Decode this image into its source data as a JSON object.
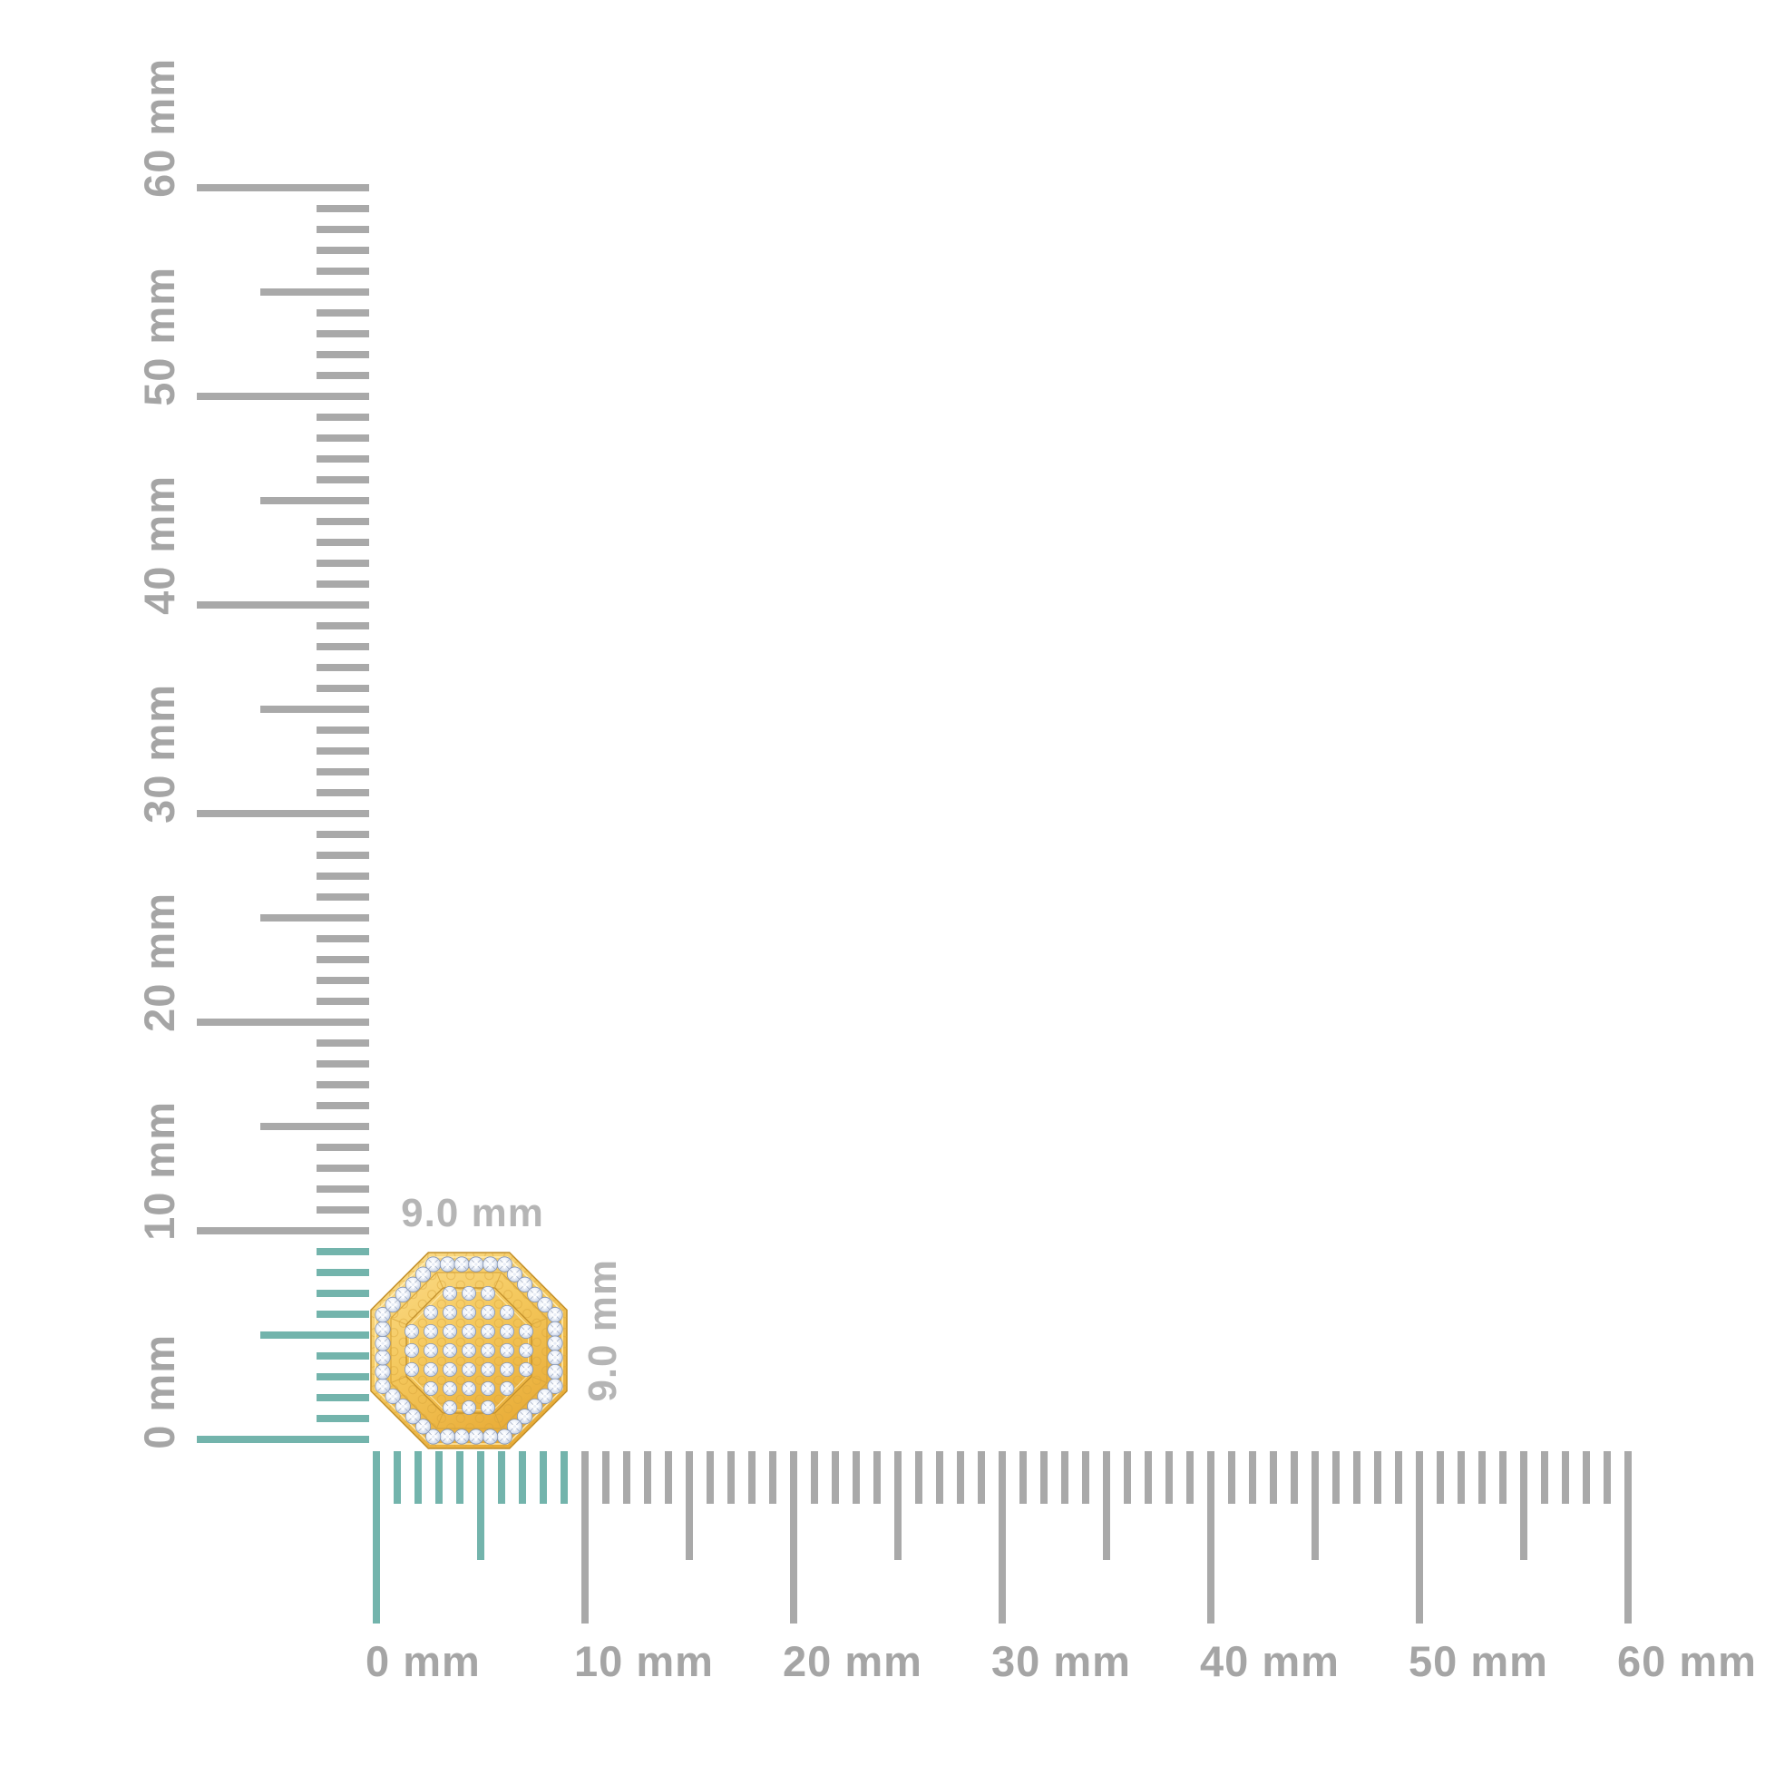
{
  "page": {
    "background_color": "#ffffff",
    "description_label": "product size measurement diagram"
  },
  "rulers": {
    "unit": "mm",
    "min_mm": 0,
    "max_mm": 60,
    "major_step_mm": 10,
    "medium_step_mm": 5,
    "highlight_min_mm": 0,
    "highlight_max_mm": 9,
    "tick_color": "#a9a9a9",
    "highlight_color": "#73b4ac",
    "label_color": "#a5a5a5",
    "major_labels": [
      "0 mm",
      "10 mm",
      "20 mm",
      "30 mm",
      "40 mm",
      "50 mm",
      "60 mm"
    ]
  },
  "product": {
    "kind": "octagonal pave diamond stud earring in yellow gold",
    "width_label": "9.0 mm",
    "height_label": "9.0 mm",
    "width_mm": 9.0,
    "height_mm": 9.0,
    "dimension_label_color": "#b5b5b5",
    "colors": {
      "gold_light": "#fcdf92",
      "gold": "#f4c85d",
      "gold_deep": "#e8ab36",
      "gold_outline": "#c08d28",
      "gold_bevel_light": "#ffeeb9",
      "gold_line": "#d8a53b",
      "diamond_white": "#ffffff",
      "diamond_mid": "#ccd6e7",
      "diamond_edge": "#9aa8c4",
      "diamond_stroke": "#8494b3"
    }
  }
}
